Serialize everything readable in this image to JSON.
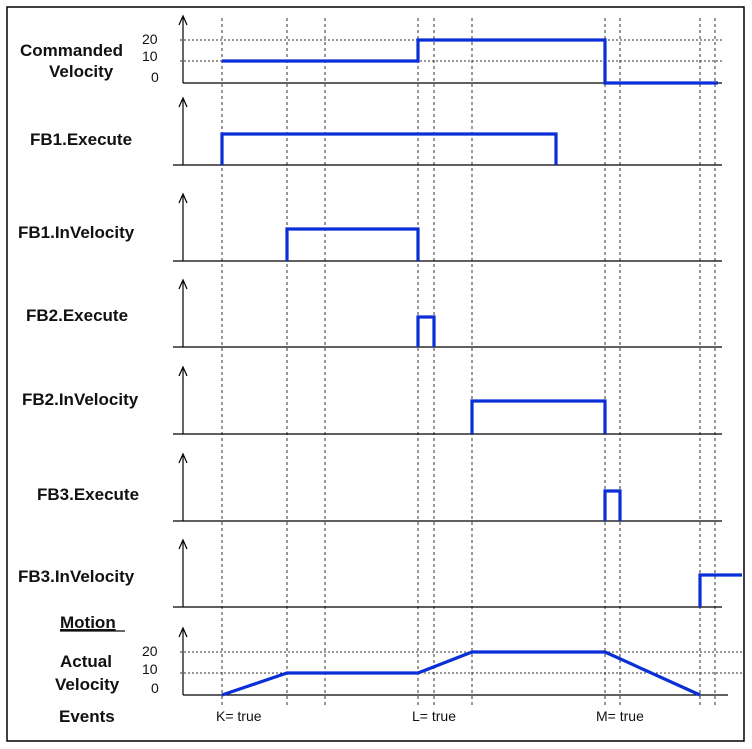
{
  "labels": {
    "commanded_line1": "Commanded",
    "commanded_line2": "Velocity",
    "fb1_execute": "FB1.Execute",
    "fb1_invelocity": "FB1.InVelocity",
    "fb2_execute": "FB2.Execute",
    "fb2_invelocity": "FB2.InVelocity",
    "fb3_execute": "FB3.Execute",
    "fb3_invelocity": "FB3.InVelocity",
    "motion": "Motion",
    "actual_line1": "Actual",
    "actual_line2": "Velocity",
    "events": "Events"
  },
  "ticks": {
    "cmd": [
      "20",
      "10",
      "0"
    ],
    "act": [
      "20",
      "10",
      "0"
    ]
  },
  "events": [
    "K= true",
    "L= true",
    "M= true"
  ],
  "colors": {
    "signal": "#0a2fd6",
    "frame": "#000000"
  }
}
